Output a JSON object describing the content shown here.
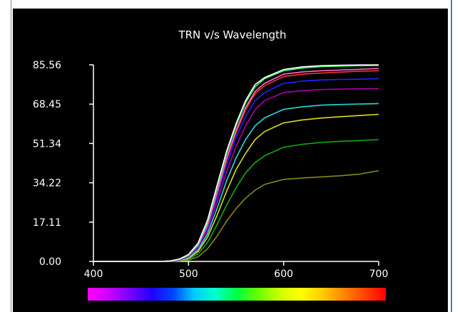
{
  "chart_data": {
    "type": "line",
    "title": "TRN v/s Wavelength",
    "xlabel": "",
    "ylabel": "",
    "xlim": [
      400,
      700
    ],
    "ylim": [
      0,
      85.56
    ],
    "xticks": [
      "400",
      "500",
      "600",
      "700"
    ],
    "yticks": [
      "0.00",
      "17.11",
      "34.22",
      "51.34",
      "68.45",
      "85.56"
    ],
    "grid": false,
    "legend": "none",
    "x": [
      400,
      470,
      480,
      490,
      500,
      510,
      520,
      530,
      540,
      550,
      560,
      570,
      580,
      600,
      620,
      640,
      660,
      680,
      700
    ],
    "series": [
      {
        "color": "#ffffff",
        "values": [
          0,
          0,
          0.2,
          1,
          3,
          8,
          18,
          33,
          48,
          60,
          70,
          77,
          80,
          83.5,
          84.7,
          85.2,
          85.4,
          85.5,
          85.56
        ]
      },
      {
        "color": "#33ff66",
        "values": [
          0,
          0,
          0.2,
          0.9,
          2.8,
          7.5,
          17,
          32,
          47,
          59,
          69,
          76,
          79.5,
          83,
          84.2,
          84.8,
          85,
          85.2,
          85.3
        ]
      },
      {
        "color": "#ff66cc",
        "values": [
          0,
          0,
          0.2,
          0.9,
          2.6,
          7,
          16,
          30,
          45,
          57,
          67,
          74,
          77.5,
          81.5,
          82.5,
          83,
          83.3,
          83.6,
          84
        ]
      },
      {
        "color": "#ff3333",
        "values": [
          0,
          0,
          0.2,
          0.8,
          2.5,
          6.8,
          15.5,
          29.5,
          44,
          56,
          66,
          73,
          76.5,
          80.5,
          81.5,
          82,
          82.4,
          82.8,
          83
        ]
      },
      {
        "color": "#2222ff",
        "values": [
          0,
          0,
          0.1,
          0.7,
          2.3,
          6.3,
          14.5,
          28,
          42,
          54,
          63,
          70,
          73.5,
          77.5,
          78.5,
          79,
          79.2,
          79.3,
          79.5
        ]
      },
      {
        "color": "#aa00aa",
        "values": [
          0,
          0,
          0.1,
          0.6,
          2,
          5.8,
          13.5,
          26,
          39,
          50,
          59,
          66,
          70,
          73.5,
          74.3,
          74.8,
          75,
          75.1,
          75.2
        ]
      },
      {
        "color": "#22dddd",
        "values": [
          0,
          0,
          0.1,
          0.5,
          1.7,
          5,
          12,
          23,
          35,
          45,
          53,
          59,
          62.5,
          66.2,
          67.3,
          68,
          68.3,
          68.5,
          68.7
        ]
      },
      {
        "color": "#dddd22",
        "values": [
          0,
          0,
          0.1,
          0.4,
          1.4,
          4.3,
          10.5,
          20,
          30.5,
          40,
          47,
          53,
          56.5,
          60.3,
          61.6,
          62.4,
          63,
          63.5,
          64
        ]
      },
      {
        "color": "#11aa11",
        "values": [
          0,
          0,
          0,
          0.3,
          1,
          3.3,
          8.2,
          16,
          24.5,
          32,
          38.5,
          43,
          46,
          49.7,
          51,
          51.8,
          52.3,
          52.6,
          53
        ]
      },
      {
        "color": "#888811",
        "values": [
          0,
          0,
          0,
          0.2,
          0.6,
          2,
          5.5,
          11,
          17.5,
          23,
          27.5,
          31,
          33.5,
          35.7,
          36.3,
          36.8,
          37.3,
          38,
          39.5
        ]
      }
    ]
  },
  "spectrum_bar": {
    "stops": [
      "#ff00ff",
      "#cc00ff",
      "#7700ff",
      "#2200ff",
      "#0044ff",
      "#00ccff",
      "#00ffcc",
      "#00ff44",
      "#66ff00",
      "#ccff00",
      "#ffff00",
      "#ffcc00",
      "#ff8800",
      "#ff4400",
      "#ff0000"
    ]
  }
}
